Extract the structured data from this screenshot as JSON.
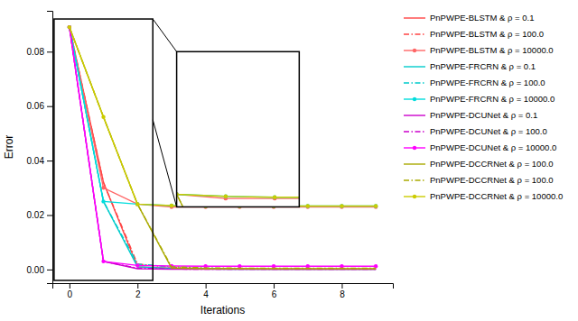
{
  "chart_data": {
    "type": "line",
    "xlabel": "Iterations",
    "ylabel": "Error",
    "x": [
      0,
      1,
      2,
      3,
      4,
      5,
      6,
      7,
      8,
      9
    ],
    "xlim": [
      -0.5,
      9.5
    ],
    "ylim": [
      -0.005,
      0.095
    ],
    "xticks": [
      0,
      2,
      4,
      6,
      8
    ],
    "yticks": [
      {
        "value": 0.0,
        "label": "0.00"
      },
      0.02,
      0.04,
      0.06,
      0.08
    ],
    "legend": "upper right",
    "series": [
      {
        "name": "PnPWPE-BLSTM & ρ = 0.1",
        "color": "#ff4444",
        "line_style": "solid",
        "values": [
          0.089,
          0.032,
          0.001,
          0.0005,
          0.0003,
          0.0002,
          0.0001,
          0.0001,
          0.0001,
          0.0001
        ]
      },
      {
        "name": "PnPWPE-BLSTM & ρ = 100.0",
        "color": "#ff4444",
        "line_style": "dash-dot",
        "values": [
          0.089,
          0.032,
          0.002,
          0.0008,
          0.0004,
          0.0003,
          0.0002,
          0.0002,
          0.0002,
          0.0002
        ]
      },
      {
        "name": "PnPWPE-BLSTM & ρ = 10000.0",
        "color": "#ff6666",
        "line_style": "solid",
        "marker": "circle",
        "values": [
          0.089,
          0.03,
          0.024,
          0.023,
          0.023,
          0.023,
          0.023,
          0.023,
          0.023,
          0.023
        ]
      },
      {
        "name": "PnPWPE-FRCRN & ρ = 0.1",
        "color": "#00cccc",
        "line_style": "solid",
        "values": [
          0.089,
          0.025,
          0.001,
          0.0004,
          0.0002,
          0.0001,
          0.0001,
          0.0001,
          0.0001,
          0.0001
        ]
      },
      {
        "name": "PnPWPE-FRCRN & ρ = 100.0",
        "color": "#00cccc",
        "line_style": "dash-dot",
        "values": [
          0.089,
          0.025,
          0.002,
          0.001,
          0.0005,
          0.0003,
          0.0002,
          0.0002,
          0.0002,
          0.0002
        ]
      },
      {
        "name": "PnPWPE-FRCRN & ρ = 10000.0",
        "color": "#00dddd",
        "line_style": "solid",
        "marker": "circle",
        "values": [
          0.089,
          0.025,
          0.024,
          0.0235,
          0.0233,
          0.0233,
          0.0233,
          0.0233,
          0.0233,
          0.0233
        ]
      },
      {
        "name": "PnPWPE-DCUNet & ρ = 0.1",
        "color": "#cc00cc",
        "line_style": "solid",
        "values": [
          0.089,
          0.003,
          0.0003,
          0.0001,
          0.0001,
          0.0001,
          0.0001,
          0.0001,
          0.0001,
          0.0001
        ]
      },
      {
        "name": "PnPWPE-DCUNet & ρ = 100.0",
        "color": "#cc00cc",
        "line_style": "dash-dot",
        "values": [
          0.089,
          0.003,
          0.0005,
          0.0002,
          0.0001,
          0.0001,
          0.0001,
          0.0001,
          0.0001,
          0.0001
        ]
      },
      {
        "name": "PnPWPE-DCUNet & ρ = 10000.0",
        "color": "#ff00ff",
        "line_style": "solid",
        "marker": "circle",
        "values": [
          0.089,
          0.003,
          0.0015,
          0.0013,
          0.0012,
          0.0012,
          0.0012,
          0.0012,
          0.0012,
          0.0012
        ]
      },
      {
        "name": "PnPWPE-DCCRNet & ρ = 100.0",
        "color": "#aaaa00",
        "line_style": "solid",
        "values": [
          0.089,
          0.056,
          0.024,
          0.0005,
          0.0003,
          0.0003,
          0.0003,
          0.0003,
          0.0003,
          0.0003
        ]
      },
      {
        "name": "PnPWPE-DCCRNet & ρ = 100.0",
        "color": "#aaaa00",
        "line_style": "dash-dot",
        "values": [
          0.089,
          0.056,
          0.024,
          0.001,
          0.0006,
          0.0005,
          0.0005,
          0.0005,
          0.0005,
          0.0005
        ]
      },
      {
        "name": "PnPWPE-DCCRNet & ρ = 10000.0",
        "color": "#cccc00",
        "line_style": "solid",
        "marker": "circle",
        "values": [
          0.089,
          0.056,
          0.024,
          0.0235,
          0.0233,
          0.0233,
          0.0233,
          0.0233,
          0.0233,
          0.0233
        ]
      }
    ],
    "zoom_box": {
      "xlim": [
        -0.45,
        2.45
      ],
      "ylim": [
        -0.004,
        0.092
      ]
    },
    "inset": {
      "xlim": [
        2.0,
        4.5
      ],
      "ylim": [
        0.021,
        0.058
      ]
    },
    "connectors": [
      {
        "from": [
          2.45,
          0.092
        ],
        "to": [
          2.0,
          0.058
        ]
      },
      {
        "from": [
          2.45,
          0.055
        ],
        "to": [
          2.0,
          0.021
        ]
      }
    ]
  }
}
